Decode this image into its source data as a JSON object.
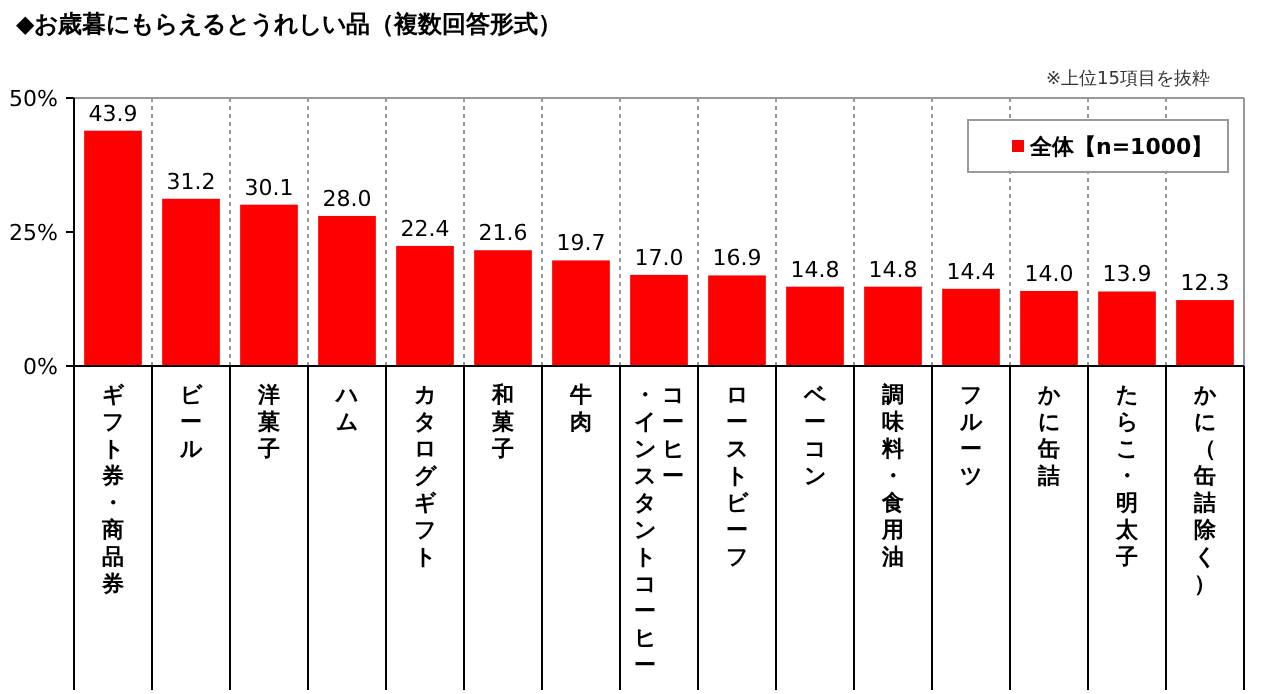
{
  "chart_data": {
    "type": "bar",
    "title": "◆お歳暮にもらえるとうれしい品（複数回答形式）",
    "annotations": [
      "※上位15項目を抜粋"
    ],
    "categories": [
      "ギフト券・商品券",
      "ビール",
      "洋菓子",
      "ハム",
      "カタログギフト",
      "和菓子",
      "牛肉",
      "コーヒー・インスタントコーヒー",
      "ローストビーフ",
      "ベーコン",
      "調味料・食用油",
      "フルーツ",
      "かに缶詰",
      "たらこ・明太子",
      "かに（缶詰除く）"
    ],
    "series": [
      {
        "name": "全体【n=1000】",
        "color": "#ff0000",
        "values": [
          43.9,
          31.2,
          30.1,
          28.0,
          22.4,
          21.6,
          19.7,
          17.0,
          16.9,
          14.8,
          14.8,
          14.4,
          14.0,
          13.9,
          12.3
        ],
        "value_labels": [
          "43.9",
          "31.2",
          "30.1",
          "28.0",
          "22.4",
          "21.6",
          "19.7",
          "17.0",
          "16.9",
          "14.8",
          "14.8",
          "14.4",
          "14.0",
          "13.9",
          "12.3"
        ]
      }
    ],
    "ylim": [
      0,
      50
    ],
    "yticks": [
      {
        "value": 0,
        "label": "0%"
      },
      {
        "value": 25,
        "label": "25%"
      },
      {
        "value": 50,
        "label": "50%"
      }
    ],
    "grid": "x",
    "legend": "top right"
  }
}
